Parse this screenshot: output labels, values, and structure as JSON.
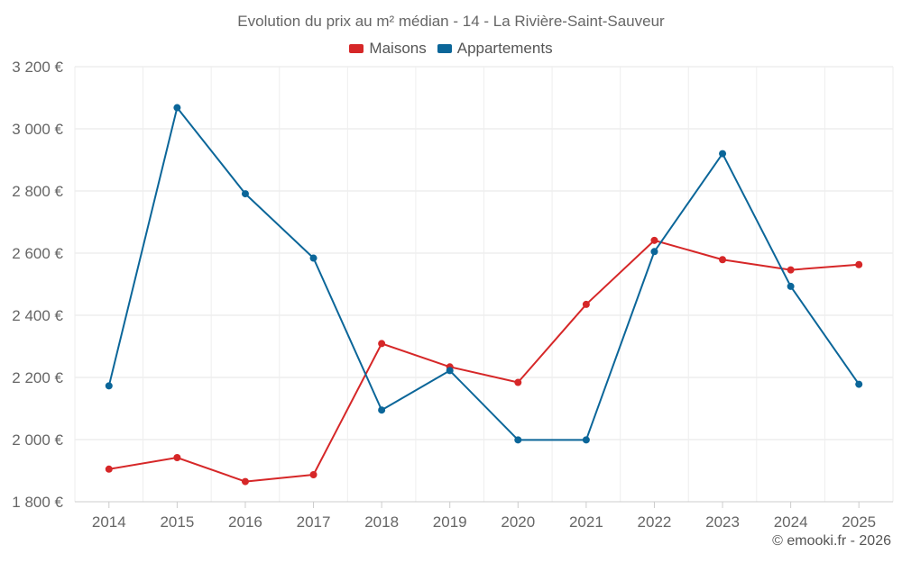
{
  "chart_data": {
    "type": "line",
    "title": "Evolution du prix au m² médian - 14 - La Rivière-Saint-Sauveur",
    "categories": [
      "2014",
      "2015",
      "2016",
      "2017",
      "2018",
      "2019",
      "2020",
      "2021",
      "2022",
      "2023",
      "2024",
      "2025"
    ],
    "series": [
      {
        "name": "Maisons",
        "color": "#d62728",
        "values": [
          1905,
          1942,
          1865,
          1887,
          2309,
          2234,
          2184,
          2435,
          2641,
          2579,
          2546,
          2563
        ]
      },
      {
        "name": "Appartements",
        "color": "#0b6699",
        "values": [
          2173,
          3068,
          2791,
          2584,
          2095,
          2222,
          1999,
          1999,
          2605,
          2920,
          2493,
          2178
        ]
      }
    ],
    "ylim": [
      1800,
      3200
    ],
    "yticks": [
      1800,
      2000,
      2200,
      2400,
      2600,
      2800,
      3000,
      3200
    ],
    "ytick_labels": [
      "1 800 €",
      "2 000 €",
      "2 200 €",
      "2 400 €",
      "2 600 €",
      "2 800 €",
      "3 000 €",
      "3 200 €"
    ],
    "xlabel": "",
    "ylabel": "",
    "grid": true,
    "legend_position": "top-center"
  },
  "credit": "© emooki.fr - 2026"
}
